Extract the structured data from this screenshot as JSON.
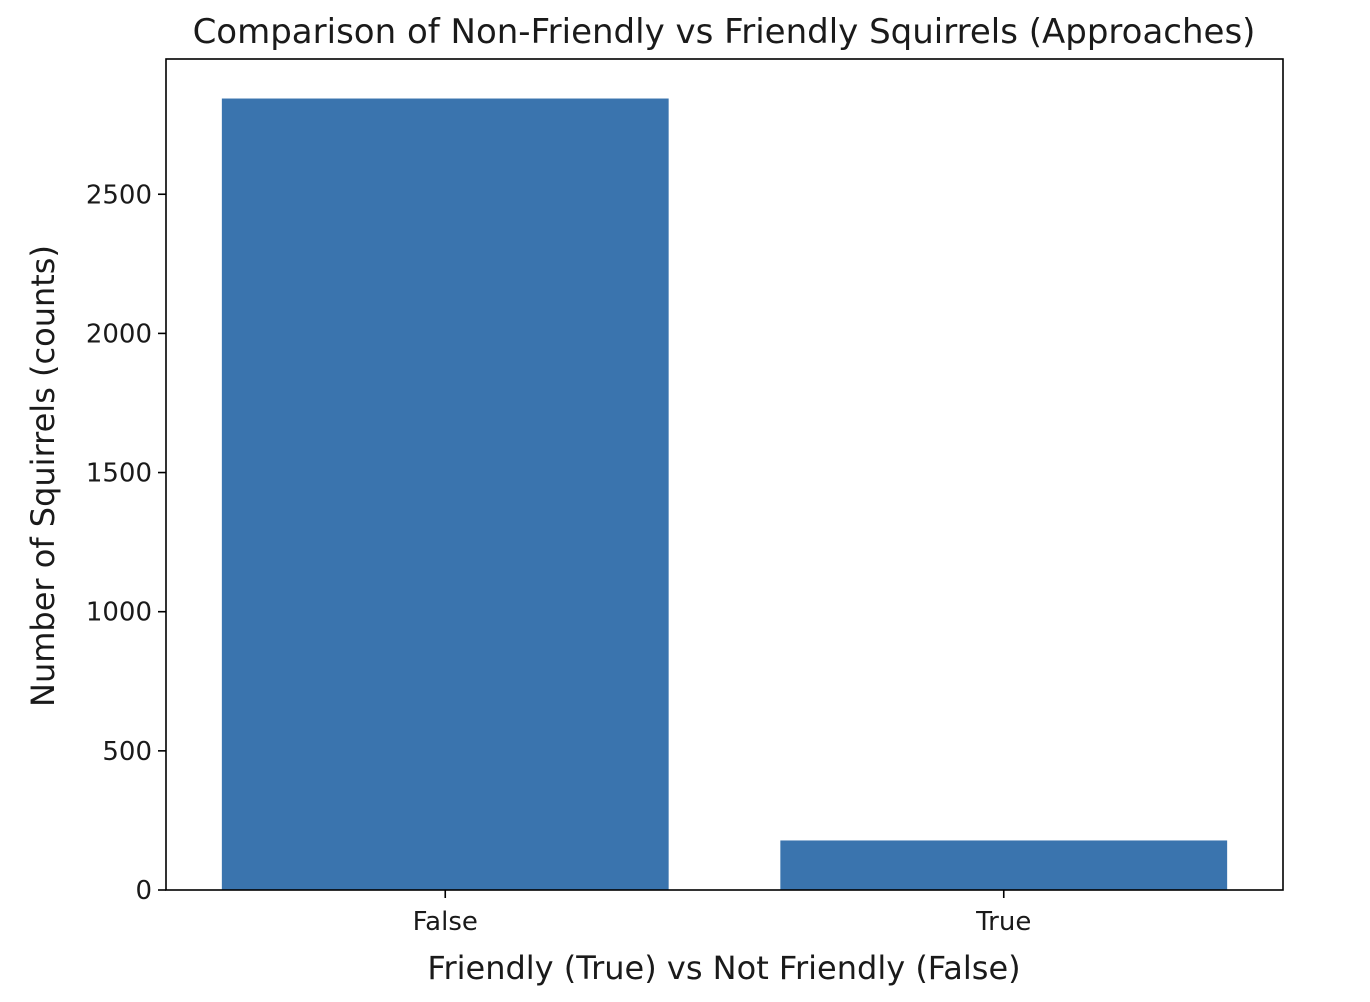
{
  "chart_data": {
    "type": "bar",
    "title": "Comparison of Non-Friendly vs Friendly Squirrels (Approaches)",
    "xlabel": "Friendly (True) vs Not Friendly (False)",
    "ylabel": "Number of Squirrels (counts)",
    "categories": [
      "False",
      "True"
    ],
    "values": [
      2844,
      178
    ],
    "ylim": [
      0,
      2986
    ],
    "yticks": [
      0,
      500,
      1000,
      1500,
      2000,
      2500
    ],
    "grid": false,
    "bar_color": "#3a74ae",
    "axis_color": "#000000"
  }
}
